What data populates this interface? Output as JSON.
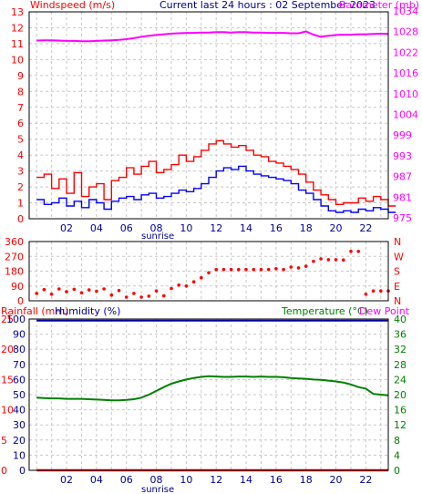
{
  "header": {
    "left_title": "Windspeed (m/s)",
    "center_title": "Current last 24 hours : 02 September 2023",
    "right_title": "Barometer (mb)"
  },
  "colors": {
    "wind_avg": "#0000ff",
    "wind_gust": "#ff0000",
    "barometer": "#ff00ff",
    "direction": "#ff0000",
    "humidity": "#000099",
    "temperature": "#008000",
    "dewpoint": "#ff00ff",
    "rainfall": "#ff0000",
    "grid": "#c8c8c8",
    "frame": "#000000"
  },
  "x_axis": {
    "tick_labels": [
      "02",
      "04",
      "06",
      "08",
      "10",
      "12",
      "14",
      "16",
      "18",
      "20",
      "22"
    ],
    "sunrise_label": "sunrise"
  },
  "panel1": {
    "wind_ticks": [
      "0",
      "1",
      "2",
      "3",
      "4",
      "5",
      "6",
      "7",
      "8",
      "9",
      "10",
      "11",
      "12",
      "13"
    ],
    "baro_ticks": [
      "975",
      "981",
      "987",
      "993",
      "999",
      "1004",
      "1010",
      "1016",
      "1022",
      "1028",
      "1034"
    ]
  },
  "panel2": {
    "deg_ticks": [
      "0",
      "90",
      "180",
      "270",
      "360"
    ],
    "compass_ticks": [
      "N",
      "E",
      "S",
      "W",
      "N"
    ]
  },
  "panel3": {
    "rain_label": "Rainfall (mm)",
    "humidity_label": "Humidity (%)",
    "temperature_label": "Temperature (°C)",
    "dewpoint_label": "Dew Point",
    "rain_ticks": [
      "0",
      "5",
      "10",
      "15",
      "20",
      "25"
    ],
    "hum_ticks": [
      "0",
      "10",
      "20",
      "30",
      "40",
      "50",
      "60",
      "70",
      "80",
      "90",
      "100"
    ],
    "temp_ticks": [
      "0",
      "4",
      "8",
      "12",
      "16",
      "20",
      "24",
      "28",
      "32",
      "36",
      "40"
    ]
  },
  "chart_data": [
    {
      "type": "line",
      "xlabel": "",
      "x": [
        0,
        0.5,
        1,
        1.5,
        2,
        2.5,
        3,
        3.5,
        4,
        4.5,
        5,
        5.5,
        6,
        6.5,
        7,
        7.5,
        8,
        8.5,
        9,
        9.5,
        10,
        10.5,
        11,
        11.5,
        12,
        12.5,
        13,
        13.5,
        14,
        14.5,
        15,
        15.5,
        16,
        16.5,
        17,
        17.5,
        18,
        18.5,
        19,
        19.5,
        20,
        20.5,
        21,
        21.5,
        22,
        22.5,
        23,
        23.5
      ],
      "series": [
        {
          "axis": "left",
          "values": [
            1.2,
            0.9,
            1.0,
            1.3,
            0.8,
            1.1,
            0.7,
            1.2,
            1.0,
            0.6,
            1.1,
            1.3,
            1.4,
            1.2,
            1.5,
            1.6,
            1.3,
            1.4,
            1.6,
            1.8,
            1.7,
            1.9,
            2.2,
            2.6,
            3.0,
            3.2,
            3.1,
            3.3,
            3.0,
            2.8,
            2.7,
            2.6,
            2.5,
            2.4,
            2.2,
            1.8,
            1.6,
            1.2,
            0.8,
            0.5,
            0.4,
            0.5,
            0.4,
            0.6,
            0.5,
            0.7,
            0.6,
            0.4
          ]
        },
        {
          "axis": "left",
          "values": [
            2.6,
            2.8,
            1.9,
            2.5,
            1.6,
            2.9,
            1.4,
            2.0,
            2.2,
            1.2,
            2.4,
            2.6,
            3.2,
            2.8,
            3.3,
            3.6,
            2.9,
            3.1,
            3.4,
            4.0,
            3.6,
            3.9,
            4.3,
            4.7,
            4.9,
            4.7,
            4.5,
            4.6,
            4.3,
            4.0,
            3.9,
            3.6,
            3.5,
            3.3,
            3.1,
            2.8,
            2.3,
            1.8,
            1.5,
            1.2,
            0.9,
            1.0,
            1.0,
            1.3,
            1.1,
            1.4,
            1.2,
            0.8
          ]
        },
        {
          "axis": "right",
          "values": [
            1025.8,
            1025.9,
            1025.9,
            1025.8,
            1025.7,
            1025.7,
            1025.6,
            1025.6,
            1025.7,
            1025.8,
            1025.9,
            1026.0,
            1026.2,
            1026.5,
            1026.9,
            1027.2,
            1027.4,
            1027.6,
            1027.8,
            1027.9,
            1028.0,
            1028.0,
            1028.1,
            1028.1,
            1028.2,
            1028.2,
            1028.1,
            1028.2,
            1028.2,
            1028.1,
            1028.1,
            1028.0,
            1028.0,
            1028.0,
            1027.9,
            1027.9,
            1028.4,
            1027.5,
            1026.9,
            1027.2,
            1027.4,
            1027.5,
            1027.5,
            1027.6,
            1027.6,
            1027.7,
            1027.8,
            1027.7
          ]
        }
      ],
      "ylim_left": [
        0,
        13
      ],
      "ylim_right": [
        975,
        1034
      ],
      "grid": true
    },
    {
      "type": "scatter",
      "x": [
        0,
        0.5,
        1,
        1.5,
        2,
        2.5,
        3,
        3.5,
        4,
        4.5,
        5,
        5.5,
        6,
        6.5,
        7,
        7.5,
        8,
        8.5,
        9,
        9.5,
        10,
        10.5,
        11,
        11.5,
        12,
        12.5,
        13,
        13.5,
        14,
        14.5,
        15,
        15.5,
        16,
        16.5,
        17,
        17.5,
        18,
        18.5,
        19,
        19.5,
        20,
        20.5,
        21,
        21.5,
        22,
        22.5,
        23,
        23.5
      ],
      "series": [
        {
          "values": [
            45,
            68,
            40,
            72,
            55,
            70,
            48,
            66,
            58,
            72,
            35,
            62,
            22,
            45,
            22,
            28,
            60,
            30,
            75,
            95,
            90,
            115,
            140,
            170,
            190,
            190,
            190,
            190,
            190,
            190,
            190,
            190,
            195,
            190,
            205,
            200,
            210,
            240,
            255,
            250,
            250,
            248,
            300,
            300,
            40,
            60,
            60,
            60
          ]
        }
      ],
      "ylim": [
        0,
        360
      ],
      "grid": true
    },
    {
      "type": "line",
      "x": [
        0,
        0.5,
        1,
        1.5,
        2,
        2.5,
        3,
        3.5,
        4,
        4.5,
        5,
        5.5,
        6,
        6.5,
        7,
        7.5,
        8,
        8.5,
        9,
        9.5,
        10,
        10.5,
        11,
        11.5,
        12,
        12.5,
        13,
        13.5,
        14,
        14.5,
        15,
        15.5,
        16,
        16.5,
        17,
        17.5,
        18,
        18.5,
        19,
        19.5,
        20,
        20.5,
        21,
        21.5,
        22,
        22.5,
        23,
        23.5
      ],
      "series": [
        {
          "axis": "humidity",
          "values": [
            99,
            99,
            99,
            99,
            99,
            99,
            99,
            99,
            99,
            99,
            99,
            99,
            99,
            99,
            99,
            99,
            99,
            99,
            99,
            99,
            99,
            99,
            99,
            99,
            99,
            99,
            99,
            99,
            99,
            99,
            99,
            99,
            99,
            99,
            99,
            99,
            99,
            99,
            99,
            99,
            99,
            99,
            99,
            99,
            99,
            99,
            99,
            99
          ]
        },
        {
          "axis": "temperature",
          "values": [
            19.2,
            19.1,
            19.0,
            19.0,
            18.9,
            18.9,
            18.9,
            18.8,
            18.7,
            18.6,
            18.5,
            18.5,
            18.6,
            18.8,
            19.2,
            20.0,
            21.0,
            22.0,
            22.9,
            23.5,
            24.0,
            24.4,
            24.7,
            24.9,
            24.8,
            24.7,
            24.7,
            24.8,
            24.8,
            24.7,
            24.8,
            24.7,
            24.7,
            24.6,
            24.4,
            24.3,
            24.2,
            24.0,
            23.9,
            23.7,
            23.5,
            23.2,
            22.7,
            22.0,
            21.6,
            20.2,
            20.0,
            19.8
          ]
        },
        {
          "axis": "rain",
          "values": [
            0,
            0,
            0,
            0,
            0,
            0,
            0,
            0,
            0,
            0,
            0,
            0,
            0,
            0,
            0,
            0,
            0,
            0,
            0,
            0,
            0,
            0,
            0,
            0,
            0,
            0,
            0,
            0,
            0,
            0,
            0,
            0,
            0,
            0,
            0,
            0,
            0,
            0,
            0,
            0,
            0,
            0,
            0,
            0,
            0,
            0,
            0,
            0
          ]
        }
      ],
      "ylim_rain": [
        0,
        25
      ],
      "ylim_humidity": [
        0,
        100
      ],
      "ylim_temperature": [
        0,
        40
      ],
      "grid": true
    }
  ]
}
